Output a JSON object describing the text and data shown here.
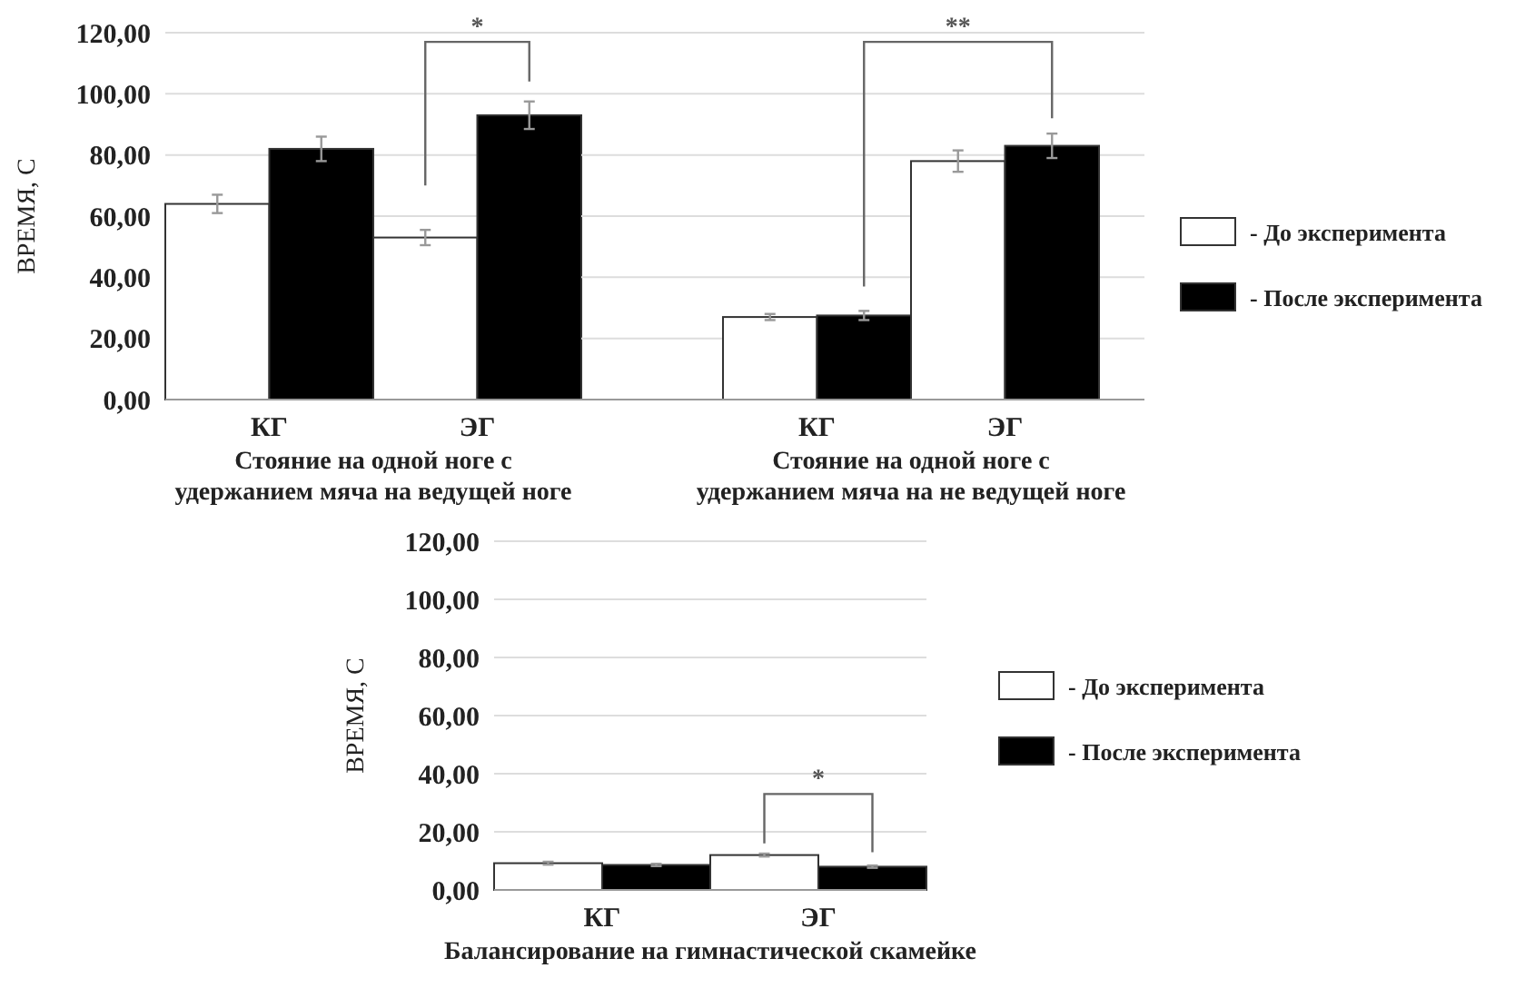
{
  "chart_data": [
    {
      "type": "bar",
      "categories": [
        "КГ",
        "ЭГ"
      ],
      "xlabel": "Стояние на одной ноге с\nудержанием мяча на ведущей ноге",
      "ylabel": "ВРЕМЯ, С",
      "series": [
        {
          "color": "#ffffff",
          "values": [
            64,
            53
          ],
          "errors": [
            3,
            2.5
          ]
        },
        {
          "color": "#000000",
          "values": [
            82,
            93
          ],
          "errors": [
            4,
            4.5
          ]
        }
      ],
      "ylim": [
        0,
        120
      ],
      "yticks": [
        {
          "value": 0,
          "label": "0,00"
        },
        {
          "value": 20,
          "label": "20,00"
        },
        {
          "value": 40,
          "label": "40,00"
        },
        {
          "value": 60,
          "label": "60,00"
        },
        {
          "value": 80,
          "label": "80,00"
        },
        {
          "value": 100,
          "label": "100,00"
        },
        {
          "value": 120,
          "label": "120,00"
        }
      ],
      "grid": "y",
      "legend": false,
      "annotations": [
        "*"
      ]
    },
    {
      "type": "bar",
      "categories": [
        "КГ",
        "ЭГ"
      ],
      "xlabel": "Стояние на одной ноге с\nудержанием мяча на не ведущей ноге",
      "series": [
        {
          "name": "- До эксперимента",
          "color": "#ffffff",
          "values": [
            27,
            78
          ],
          "errors": [
            1,
            3.5
          ]
        },
        {
          "name": "- После эксперимента",
          "color": "#000000",
          "values": [
            27.5,
            83
          ],
          "errors": [
            1.5,
            4
          ]
        }
      ],
      "ylim": [
        0,
        120
      ],
      "yticks": [
        0,
        20,
        40,
        60,
        80,
        100,
        120
      ],
      "tick_labels": "x",
      "grid": "y",
      "legend": "right",
      "annotations": [
        "**"
      ]
    },
    {
      "type": "bar",
      "categories": [
        "КГ",
        "ЭГ"
      ],
      "xlabel": "Балансирование на гимнастической скамейке",
      "ylabel": "ВРЕМЯ, С",
      "series": [
        {
          "name": "- До эксперимента",
          "color": "#ffffff",
          "values": [
            9.2,
            12
          ],
          "errors": [
            0.5,
            0.5
          ]
        },
        {
          "name": "- После эксперимента",
          "color": "#000000",
          "values": [
            8.6,
            8
          ],
          "errors": [
            0.4,
            0.4
          ]
        }
      ],
      "ylim": [
        0,
        120
      ],
      "yticks": [
        {
          "value": 0,
          "label": "0,00"
        },
        {
          "value": 20,
          "label": "20,00"
        },
        {
          "value": 40,
          "label": "40,00"
        },
        {
          "value": 60,
          "label": "60,00"
        },
        {
          "value": 80,
          "label": "80,00"
        },
        {
          "value": 100,
          "label": "100,00"
        },
        {
          "value": 120,
          "label": "120,00"
        }
      ],
      "grid": "y",
      "legend": "right",
      "annotations": [
        "*"
      ]
    }
  ]
}
